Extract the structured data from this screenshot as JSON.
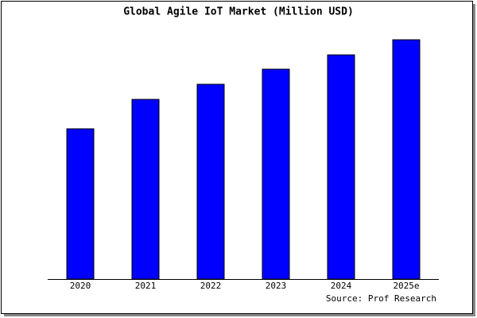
{
  "chart_data": {
    "type": "bar",
    "title": "Global Agile IoT Market (Million USD)",
    "categories": [
      "2020",
      "2021",
      "2022",
      "2023",
      "2024",
      "2025e"
    ],
    "values": [
      189,
      226,
      245,
      264,
      282,
      301
    ],
    "color": "#0000ff",
    "ylim": [
      0,
      303
    ],
    "source": "Source: Prof Research"
  }
}
